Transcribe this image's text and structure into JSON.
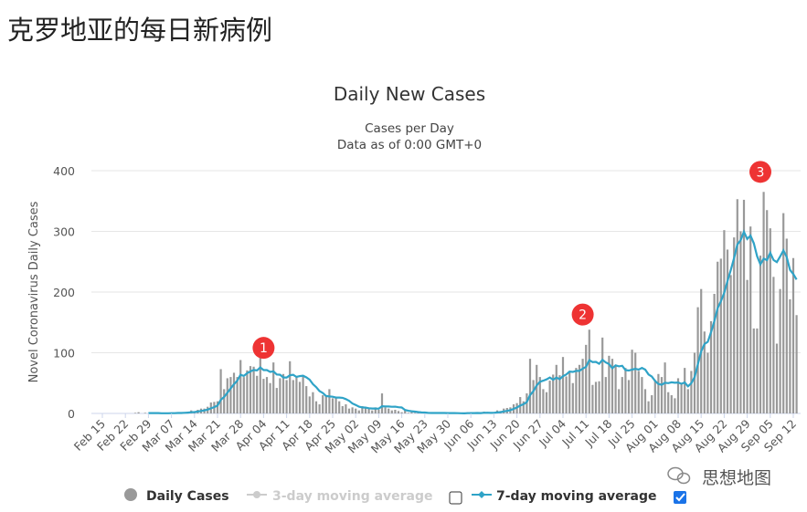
{
  "page_title": "克罗地亚的每日新病例",
  "watermark": "思想地图",
  "chart_data": {
    "type": "bar",
    "title": "Daily New Cases",
    "subtitle": [
      "Cases per Day",
      "Data as of 0:00 GMT+0"
    ],
    "ylabel": "Novel Coronavirus Daily Cases",
    "xlabel": "",
    "ylim": [
      0,
      400
    ],
    "yticks": [
      0,
      100,
      200,
      300,
      400
    ],
    "grid": true,
    "legend_position": "bottom",
    "start_date": "2020-02-15",
    "xtick_labels": [
      "Feb 15",
      "Feb 22",
      "Feb 29",
      "Mar 07",
      "Mar 14",
      "Mar 21",
      "Mar 28",
      "Apr 04",
      "Apr 11",
      "Apr 18",
      "Apr 25",
      "May 02",
      "May 09",
      "May 16",
      "May 23",
      "May 30",
      "Jun 06",
      "Jun 13",
      "Jun 20",
      "Jun 27",
      "Jul 04",
      "Jul 11",
      "Jul 18",
      "Jul 25",
      "Aug 01",
      "Aug 08",
      "Aug 15",
      "Aug 22",
      "Aug 29",
      "Sep 05",
      "Sep 12"
    ],
    "series": [
      {
        "name": "Daily Cases",
        "color": "#999999",
        "visible": true,
        "values": [
          0,
          0,
          0,
          0,
          0,
          0,
          0,
          0,
          0,
          0,
          1,
          2,
          0,
          1,
          0,
          0,
          0,
          1,
          0,
          0,
          1,
          1,
          0,
          2,
          1,
          2,
          3,
          5,
          3,
          6,
          8,
          8,
          11,
          18,
          19,
          20,
          73,
          40,
          58,
          60,
          67,
          60,
          88,
          60,
          71,
          78,
          77,
          62,
          95,
          57,
          60,
          50,
          84,
          42,
          58,
          65,
          55,
          86,
          55,
          60,
          52,
          63,
          45,
          28,
          35,
          20,
          15,
          30,
          28,
          40,
          25,
          25,
          20,
          12,
          15,
          8,
          10,
          8,
          5,
          12,
          9,
          8,
          5,
          10,
          6,
          33,
          10,
          8,
          5,
          6,
          4,
          2,
          5,
          1,
          2,
          1,
          1,
          0,
          1,
          0,
          0,
          2,
          1,
          1,
          0,
          0,
          0,
          0,
          1,
          0,
          0,
          2,
          1,
          0,
          1,
          0,
          3,
          1,
          0,
          2,
          5,
          4,
          8,
          9,
          10,
          15,
          17,
          27,
          20,
          33,
          90,
          55,
          80,
          60,
          40,
          35,
          54,
          64,
          80,
          63,
          93,
          61,
          68,
          50,
          75,
          80,
          90,
          113,
          138,
          47,
          52,
          53,
          125,
          60,
          95,
          90,
          80,
          40,
          60,
          75,
          55,
          105,
          100,
          70,
          60,
          40,
          20,
          30,
          55,
          65,
          60,
          84,
          35,
          30,
          25,
          58,
          50,
          75,
          40,
          70,
          100,
          175,
          205,
          135,
          100,
          152,
          197,
          250,
          255,
          302,
          270,
          228,
          290,
          353,
          300,
          352,
          220,
          308,
          140,
          140,
          260,
          365,
          335,
          305,
          225,
          115,
          205,
          330,
          288,
          188,
          256,
          162
        ]
      },
      {
        "name": "3-day moving average",
        "color": "#cccccc",
        "visible": false
      },
      {
        "name": "7-day moving average",
        "color": "#2fa3c7",
        "visible": true
      }
    ],
    "annotations": [
      {
        "label": "1",
        "date": "2020-04-04",
        "value": 108
      },
      {
        "label": "2",
        "date": "2020-07-10",
        "value": 163
      },
      {
        "label": "3",
        "date": "2020-09-02",
        "value": 398
      }
    ],
    "annotation_color": "#ee3333"
  }
}
